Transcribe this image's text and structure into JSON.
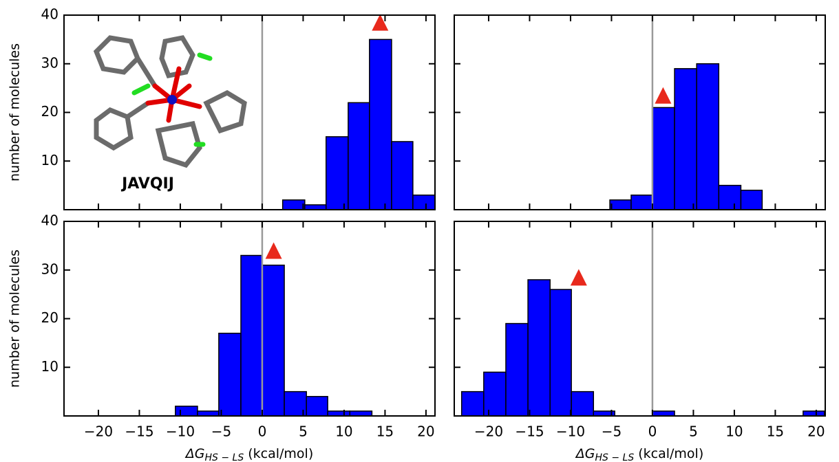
{
  "chart_data": [
    {
      "type": "histogram",
      "bins": [
        2.5,
        5.2,
        7.8,
        10.5,
        13.1,
        15.8,
        18.4,
        21.1
      ],
      "values": [
        2,
        1,
        15,
        22,
        35,
        14,
        3
      ],
      "color": "#0000ff",
      "marker": {
        "x": 14.4,
        "y": 38.5,
        "color": "#e8291c"
      },
      "annotation": "JAVQIJ",
      "ylabel": "number of molecules",
      "xlim": [
        -24.2,
        21.1
      ],
      "ylim": [
        0,
        40
      ],
      "xticks": [
        {
          "value": -20,
          "label": "−20"
        },
        {
          "value": -15,
          "label": "−15"
        },
        {
          "value": -10,
          "label": "−10"
        },
        {
          "value": -5,
          "label": "−5"
        },
        0,
        5,
        10,
        15,
        20
      ],
      "yticks": [
        10,
        20,
        30,
        40
      ],
      "xtick_labels": false,
      "ytick_labels": true
    },
    {
      "type": "histogram",
      "bins": [
        -5.2,
        -2.6,
        0,
        2.7,
        5.4,
        8.1,
        10.8,
        13.4
      ],
      "values": [
        2,
        3,
        21,
        29,
        30,
        5,
        4
      ],
      "color": "#0000ff",
      "marker": {
        "x": 1.3,
        "y": 23.5,
        "color": "#e8291c"
      },
      "xlim": [
        -24.2,
        21.1
      ],
      "ylim": [
        0,
        40
      ],
      "xticks": [
        {
          "value": -20,
          "label": "−20"
        },
        {
          "value": -15,
          "label": "−15"
        },
        {
          "value": -10,
          "label": "−10"
        },
        {
          "value": -5,
          "label": "−5"
        },
        0,
        5,
        10,
        15,
        20
      ],
      "yticks": [
        10,
        20,
        30,
        40
      ],
      "xtick_labels": false,
      "ytick_labels": false
    },
    {
      "type": "histogram",
      "bins": [
        -10.6,
        -7.9,
        -5.3,
        -2.6,
        0,
        2.7,
        5.4,
        8.0,
        10.7,
        13.4
      ],
      "values": [
        2,
        1,
        17,
        33,
        31,
        5,
        4,
        1,
        1
      ],
      "color": "#0000ff",
      "marker": {
        "x": 1.4,
        "y": 34,
        "color": "#e8291c"
      },
      "ylabel": "number of molecules",
      "xlabel": {
        "main": "ΔG",
        "sub": "HS − LS",
        "unit": "(kcal/mol)"
      },
      "xlim": [
        -24.2,
        21.1
      ],
      "ylim": [
        0,
        40
      ],
      "xticks": [
        {
          "value": -20,
          "label": "−20"
        },
        {
          "value": -15,
          "label": "−15"
        },
        {
          "value": -10,
          "label": "−10"
        },
        {
          "value": -5,
          "label": "−5"
        },
        0,
        5,
        10,
        15,
        20
      ],
      "yticks": [
        10,
        20,
        30,
        40
      ],
      "xtick_labels": true,
      "ytick_labels": true
    },
    {
      "type": "histogram",
      "bins": [
        -23.3,
        -20.6,
        -17.9,
        -15.2,
        -12.5,
        -9.9,
        -7.2,
        -4.6,
        -2.3,
        0,
        2.7,
        18.4,
        21.0
      ],
      "values": [
        5,
        9,
        19,
        28,
        26,
        5,
        1,
        0,
        0,
        1,
        0,
        1
      ],
      "color": "#0000ff",
      "marker": {
        "x": -9.0,
        "y": 28.5,
        "color": "#e8291c"
      },
      "xlabel": {
        "main": "ΔG",
        "sub": "HS − LS",
        "unit": "(kcal/mol)"
      },
      "xlim": [
        -24.2,
        21.1
      ],
      "ylim": [
        0,
        40
      ],
      "xticks": [
        {
          "value": -20,
          "label": "−20"
        },
        {
          "value": -15,
          "label": "−15"
        },
        {
          "value": -10,
          "label": "−10"
        },
        {
          "value": -5,
          "label": "−5"
        },
        0,
        5,
        10,
        15,
        20
      ],
      "yticks": [
        10,
        20,
        30,
        40
      ],
      "xtick_labels": true,
      "ytick_labels": false
    }
  ]
}
